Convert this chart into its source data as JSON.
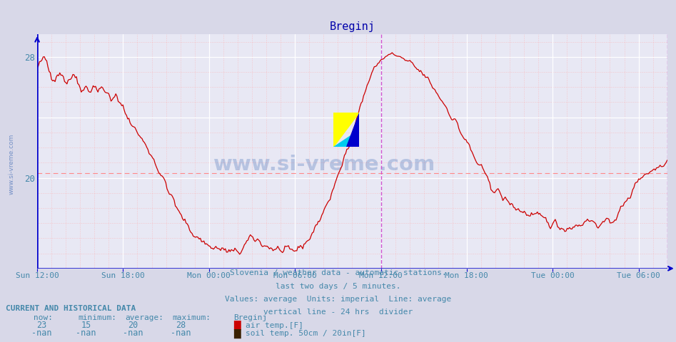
{
  "title": "Breginj",
  "background_color": "#d8d8e8",
  "plot_bg_color": "#e8e8f4",
  "line_color": "#cc0000",
  "avg_line_color": "#ff8888",
  "axis_color": "#0000cc",
  "text_color": "#4488aa",
  "title_color": "#0000aa",
  "vertical_line_color": "#cc44cc",
  "average_value": 20.3,
  "ylim_min": 14.0,
  "ylim_max": 29.5,
  "ytick_vals": [
    20,
    28
  ],
  "x_tick_hours": [
    0,
    6,
    12,
    18,
    24,
    30,
    36,
    42
  ],
  "x_tick_labels": [
    "Sun 12:00",
    "Sun 18:00",
    "Mon 00:00",
    "Mon 06:00",
    "Mon 12:00",
    "Mon 18:00",
    "Tue 00:00",
    "Tue 06:00"
  ],
  "total_hours": 44,
  "divider_hour": 24,
  "subtitle_lines": [
    "Slovenia / weather data - automatic stations.",
    "last two days / 5 minutes.",
    "Values: average  Units: imperial  Line: average",
    "vertical line - 24 hrs  divider"
  ],
  "legend_title": "CURRENT AND HISTORICAL DATA",
  "legend_headers": [
    "now:",
    "minimum:",
    "average:",
    "maximum:",
    "Breginj"
  ],
  "legend_row1_vals": [
    "23",
    "15",
    "20",
    "28"
  ],
  "legend_row1_label": "air temp.[F]",
  "legend_row2_vals": [
    "-nan",
    "-nan",
    "-nan",
    "-nan"
  ],
  "legend_row2_label": "soil temp. 50cm / 20in[F]",
  "air_temp_color": "#cc0000",
  "soil_temp_color": "#3a2000",
  "watermark": "www.si-vreme.com",
  "watermark_color": "#2255aa",
  "watermark_alpha": 0.25,
  "left_watermark": "www.si-vreme.com"
}
